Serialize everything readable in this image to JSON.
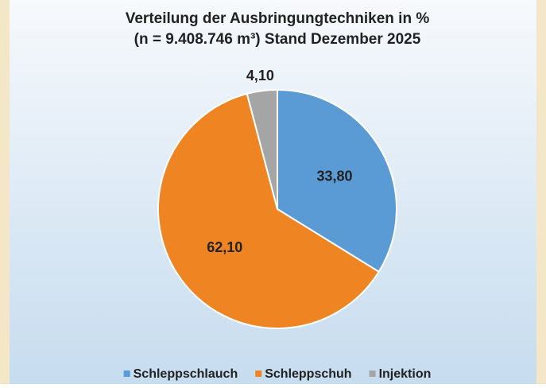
{
  "chart_data": {
    "type": "pie",
    "title": "Verteilung der Ausbringungtechniken in %",
    "subtitle": "(n = 9.408.746 m³) Stand Dezember 2025",
    "categories": [
      "Schleppschlauch",
      "Schleppschuh",
      "Injektion"
    ],
    "values": [
      33.8,
      62.1,
      4.1
    ],
    "value_labels": [
      "33,80",
      "62,10",
      "4,10"
    ],
    "colors": [
      "#5b9bd5",
      "#ef8522",
      "#a5a5a5"
    ],
    "legend": "bottom"
  }
}
